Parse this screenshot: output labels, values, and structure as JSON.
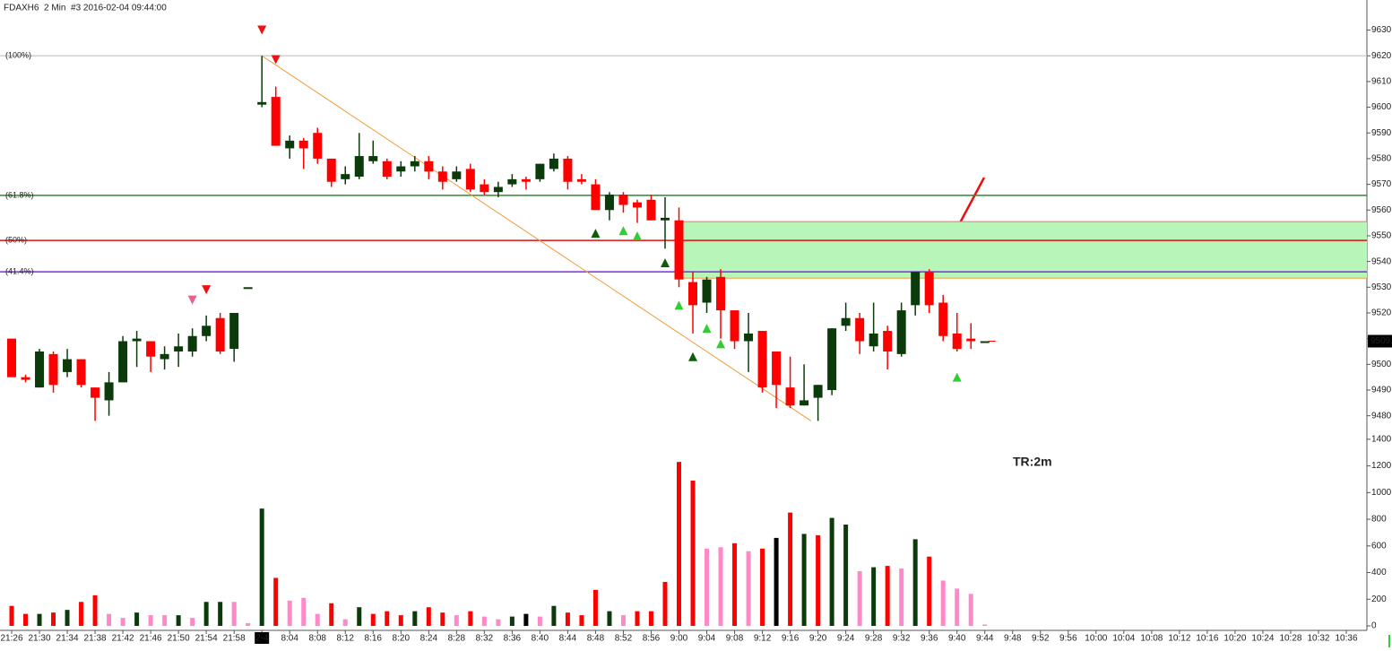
{
  "chart_data": {
    "type": "candlestick",
    "title": "FDAXH6  2 Min  #3 2016-02-04 09:44:00",
    "annotation": "TR:2m",
    "categories": [
      "21:26",
      null,
      "21:30",
      null,
      "21:34",
      null,
      "21:38",
      null,
      "21:42",
      null,
      "21:46",
      null,
      "21:50",
      null,
      "21:54",
      null,
      "21:58",
      null,
      "2-4",
      null,
      "8:04",
      null,
      "8:08",
      null,
      "8:12",
      null,
      "8:16",
      null,
      "8:20",
      null,
      "8:24",
      null,
      "8:28",
      null,
      "8:32",
      null,
      "8:36",
      null,
      "8:40",
      null,
      "8:44",
      null,
      "8:48",
      null,
      "8:52",
      null,
      "8:56",
      null,
      "9:00",
      null,
      "9:04",
      null,
      "9:08",
      null,
      "9:12",
      null,
      "9:16",
      null,
      "9:20",
      null,
      "9:24",
      null,
      "9:28",
      null,
      "9:32",
      null,
      "9:36",
      null,
      "9:40",
      null,
      "9:44",
      null,
      "9:48",
      null,
      "9:52",
      null,
      "9:56",
      null,
      "10:00",
      null,
      "10:04",
      null,
      "10:08",
      null,
      "10:12",
      null,
      "10:16",
      null,
      "10:20",
      null,
      "10:24",
      null,
      "10:28",
      null,
      "10:32",
      null,
      "10:36"
    ],
    "open": [
      9510,
      9495,
      9491,
      9504,
      9497,
      9502,
      9491,
      9486,
      9493,
      9509,
      9509,
      9502,
      9505,
      9505,
      9511,
      9518,
      9506,
      9530,
      9601,
      9604,
      9584,
      9587,
      9590,
      9580,
      9572,
      9573,
      9579,
      9579,
      9575,
      9577,
      9579,
      9575,
      9572,
      9576,
      9570,
      9567,
      9570,
      9572,
      9572,
      9576,
      9580,
      9572,
      9570,
      9560,
      9566,
      9563,
      9564,
      9556,
      9556,
      9532,
      9524,
      9534,
      9521,
      9509,
      9513,
      9505,
      9491,
      9484,
      9487,
      9490,
      9515,
      9518,
      9507,
      9513,
      9504,
      9523,
      9536,
      9524,
      9512,
      9510,
      9509,
      null,
      null,
      null,
      null,
      null,
      null,
      null,
      null,
      null,
      null,
      null,
      null,
      null,
      null,
      null,
      null,
      null,
      null,
      null,
      null,
      null,
      null,
      null,
      null,
      null,
      null
    ],
    "high": [
      9510,
      9496,
      9506,
      9505,
      9506,
      9502,
      9491,
      9497,
      9511,
      9513,
      9509,
      9507,
      9512,
      9514,
      9519,
      9520,
      9520,
      9530,
      9620,
      9608,
      9589,
      9588,
      9592,
      9580,
      9577,
      9590,
      9587,
      9580,
      9579,
      9581,
      9581,
      9577,
      9577,
      9578,
      9572,
      9571,
      9574,
      9573,
      9578,
      9582,
      9581,
      9574,
      9572,
      9567,
      9567,
      9564,
      9566,
      9565,
      9561,
      9536,
      9534,
      9537,
      9521,
      9520,
      9513,
      9505,
      9503,
      9500,
      9492,
      9514,
      9524,
      9520,
      9524,
      9515,
      9524,
      9536,
      9537,
      9527,
      9520,
      9516,
      9509,
      null,
      null,
      null,
      null,
      null,
      null,
      null,
      null,
      null,
      null,
      null,
      null,
      null,
      null,
      null,
      null,
      null,
      null,
      null,
      null,
      null,
      null,
      null,
      null,
      null,
      null
    ],
    "low": [
      9495,
      9493,
      9491,
      9489,
      9495,
      9491,
      9478,
      9480,
      9493,
      9499,
      9497,
      9498,
      9499,
      9503,
      9509,
      9504,
      9501,
      9530,
      9600,
      9585,
      9580,
      9576,
      9578,
      9569,
      9570,
      9572,
      9578,
      9572,
      9573,
      9575,
      9572,
      9568,
      9571,
      9567,
      9566,
      9565,
      9569,
      9568,
      9571,
      9575,
      9568,
      9570,
      9560,
      9556,
      9559,
      9555,
      9556,
      9545,
      9530,
      9512,
      9520,
      9510,
      9506,
      9497,
      9489,
      9483,
      9483,
      9484,
      9478,
      9488,
      9513,
      9504,
      9505,
      9498,
      9503,
      9519,
      9520,
      9509,
      9505,
      9506,
      9509,
      null,
      null,
      null,
      null,
      null,
      null,
      null,
      null,
      null,
      null,
      null,
      null,
      null,
      null,
      null,
      null,
      null,
      null,
      null,
      null,
      null,
      null,
      null,
      null,
      null,
      null
    ],
    "close": [
      9495,
      9494,
      9505,
      9492,
      9502,
      9492,
      9487,
      9493,
      9509,
      9510,
      9503,
      9504,
      9507,
      9511,
      9515,
      9505,
      9520,
      9530,
      9602,
      9585,
      9587,
      9584,
      9580,
      9571,
      9574,
      9581,
      9581,
      9573,
      9577,
      9579,
      9575,
      9571,
      9575,
      9568,
      9567,
      9569,
      9572,
      9571,
      9578,
      9580,
      9571,
      9571,
      9560,
      9566,
      9562,
      9561,
      9556,
      9557,
      9533,
      9523,
      9533,
      9521,
      9509,
      9512,
      9491,
      9492,
      9484,
      9486,
      9492,
      9514,
      9518,
      9509,
      9512,
      9505,
      9521,
      9536,
      9523,
      9511,
      9506,
      9509,
      9509,
      null,
      null,
      null,
      null,
      null,
      null,
      null,
      null,
      null,
      null,
      null,
      null,
      null,
      null,
      null,
      null,
      null,
      null,
      null,
      null,
      null,
      null,
      null,
      null,
      null,
      null
    ],
    "up_color": "#0b3b0b",
    "down_color": "#ff0000",
    "ylim": [
      9475,
      9641
    ],
    "yticks": [
      {
        "value": 9480,
        "label": "9480.0"
      },
      {
        "value": 9490,
        "label": "9490.0"
      },
      {
        "value": 9500,
        "label": "9500.0"
      },
      {
        "value": 9510,
        "label": "9510.0"
      },
      {
        "value": 9520,
        "label": "9520.0"
      },
      {
        "value": 9530,
        "label": "9530.0"
      },
      {
        "value": 9540,
        "label": "9540.0"
      },
      {
        "value": 9550,
        "label": "9550.0"
      },
      {
        "value": 9560,
        "label": "9560.0"
      },
      {
        "value": 9570,
        "label": "9570.0"
      },
      {
        "value": 9580,
        "label": "9580.0"
      },
      {
        "value": 9590,
        "label": "9590.0"
      },
      {
        "value": 9600,
        "label": "9600.0"
      },
      {
        "value": 9610,
        "label": "9610.0"
      },
      {
        "value": 9620,
        "label": "9620.0"
      },
      {
        "value": 9630,
        "label": "9630.0"
      }
    ],
    "last_price": {
      "value": 9509,
      "label": "9509.0"
    },
    "fib_levels": [
      {
        "label": "(100%)",
        "value": 9620,
        "color": "#d0d0d0"
      },
      {
        "label": "(61.8%)",
        "value": 9565.7,
        "color": "#2e8b2e"
      },
      {
        "label": "(50%)",
        "value": 9548.2,
        "color": "#e01010"
      },
      {
        "label": "(41.4%)",
        "value": 9536,
        "color": "#7a2ee0"
      }
    ],
    "zone": {
      "from": 9533.5,
      "to": 9555.5,
      "color": "#b8f5b8"
    },
    "trendline": {
      "from": 9620,
      "to": 9478,
      "color": "#f39a3c"
    },
    "signals": {
      "values": [
        null,
        null,
        null,
        null,
        null,
        null,
        null,
        null,
        null,
        null,
        null,
        null,
        null,
        9525,
        9529,
        null,
        null,
        null,
        9630,
        9618.5,
        null,
        null,
        null,
        null,
        null,
        null,
        null,
        null,
        null,
        null,
        null,
        null,
        null,
        null,
        null,
        null,
        null,
        null,
        null,
        null,
        null,
        null,
        9551,
        null,
        9552,
        9550,
        null,
        9539.5,
        9523,
        9503,
        9514,
        9508,
        null,
        null,
        null,
        null,
        null,
        null,
        null,
        null,
        null,
        null,
        null,
        null,
        null,
        null,
        null,
        null,
        9495,
        null,
        null,
        null,
        null,
        null,
        null,
        null,
        null,
        null,
        null,
        null,
        null,
        null,
        null,
        null,
        null,
        null,
        null,
        null,
        null,
        null,
        null,
        null,
        null,
        null,
        null,
        null,
        null
      ],
      "colors": [
        null,
        null,
        null,
        null,
        null,
        null,
        null,
        null,
        null,
        null,
        null,
        null,
        null,
        "#e8608c",
        "#ee1111",
        null,
        null,
        null,
        "#ee1111",
        "#ee1111",
        null,
        null,
        null,
        null,
        null,
        null,
        null,
        null,
        null,
        null,
        null,
        null,
        null,
        null,
        null,
        null,
        null,
        null,
        null,
        null,
        null,
        null,
        "#0b5d0b",
        null,
        "#33cc33",
        "#33cc33",
        null,
        "#0b5d0b",
        "#33cc33",
        "#0b5d0b",
        "#33cc33",
        "#33cc33",
        null,
        null,
        null,
        null,
        null,
        null,
        null,
        null,
        null,
        null,
        null,
        null,
        null,
        null,
        null,
        null,
        "#33cc33",
        null,
        null,
        null,
        null,
        null,
        null,
        null,
        null,
        null,
        null,
        null,
        null,
        null,
        null,
        null,
        null,
        null,
        null,
        null,
        null,
        null,
        null,
        null,
        null,
        null,
        null,
        null,
        null
      ]
    },
    "volume": {
      "values": [
        150,
        90,
        90,
        100,
        120,
        180,
        230,
        90,
        60,
        100,
        80,
        80,
        80,
        60,
        180,
        180,
        180,
        20,
        880,
        360,
        190,
        210,
        90,
        170,
        50,
        140,
        90,
        110,
        80,
        110,
        140,
        100,
        80,
        110,
        70,
        50,
        70,
        90,
        70,
        150,
        100,
        80,
        270,
        110,
        80,
        110,
        110,
        330,
        1230,
        1090,
        580,
        590,
        620,
        560,
        580,
        660,
        850,
        690,
        680,
        810,
        760,
        410,
        440,
        450,
        430,
        650,
        520,
        340,
        280,
        240,
        10,
        null,
        null,
        null,
        null,
        null,
        null,
        null,
        null,
        null,
        null,
        null,
        null,
        null,
        null,
        null,
        null,
        null,
        null,
        null,
        null,
        null,
        null,
        null,
        null,
        null,
        null
      ],
      "colors": [
        "#ff0000",
        "#ff0000",
        "#0b3b0b",
        "#ff0000",
        "#0b3b0b",
        "#ff0000",
        "#ff0000",
        "#ff88c8",
        "#ff88c8",
        "#0b3b0b",
        "#ff88c8",
        "#ff88c8",
        "#0b3b0b",
        "#ff88c8",
        "#0b3b0b",
        "#0b3b0b",
        "#ff88c8",
        "#ff88c8",
        "#0b3b0b",
        "#ff0000",
        "#ff88c8",
        "#ff88c8",
        "#ff88c8",
        "#ff0000",
        "#ff88c8",
        "#0b3b0b",
        "#ff0000",
        "#ff0000",
        "#ff0000",
        "#0b3b0b",
        "#ff0000",
        "#ff0000",
        "#ff88c8",
        "#ff0000",
        "#ff88c8",
        "#ff88c8",
        "#0b3b0b",
        "#000000",
        "#ff88c8",
        "#0b3b0b",
        "#ff0000",
        "#ff0000",
        "#ff0000",
        "#0b3b0b",
        "#ff88c8",
        "#ff0000",
        "#ff0000",
        "#ff0000",
        "#ff0000",
        "#ff0000",
        "#ff88c8",
        "#ff88c8",
        "#ff0000",
        "#ff88c8",
        "#ff0000",
        "#000000",
        "#ff0000",
        "#0b3b0b",
        "#ff0000",
        "#0b3b0b",
        "#0b3b0b",
        "#ff88c8",
        "#0b3b0b",
        "#ff0000",
        "#ff88c8",
        "#0b3b0b",
        "#ff0000",
        "#ff88c8",
        "#ff88c8",
        "#ff88c8",
        "#ff88c8",
        null,
        null,
        null,
        null,
        null,
        null,
        null,
        null,
        null,
        null,
        null,
        null,
        null,
        null,
        null,
        null,
        null,
        null,
        null,
        null,
        null,
        null,
        null,
        null,
        null,
        null
      ],
      "ylim": [
        0,
        1500
      ],
      "yticks": [
        0,
        200,
        400,
        600,
        800,
        1000,
        1200,
        1400
      ]
    }
  }
}
